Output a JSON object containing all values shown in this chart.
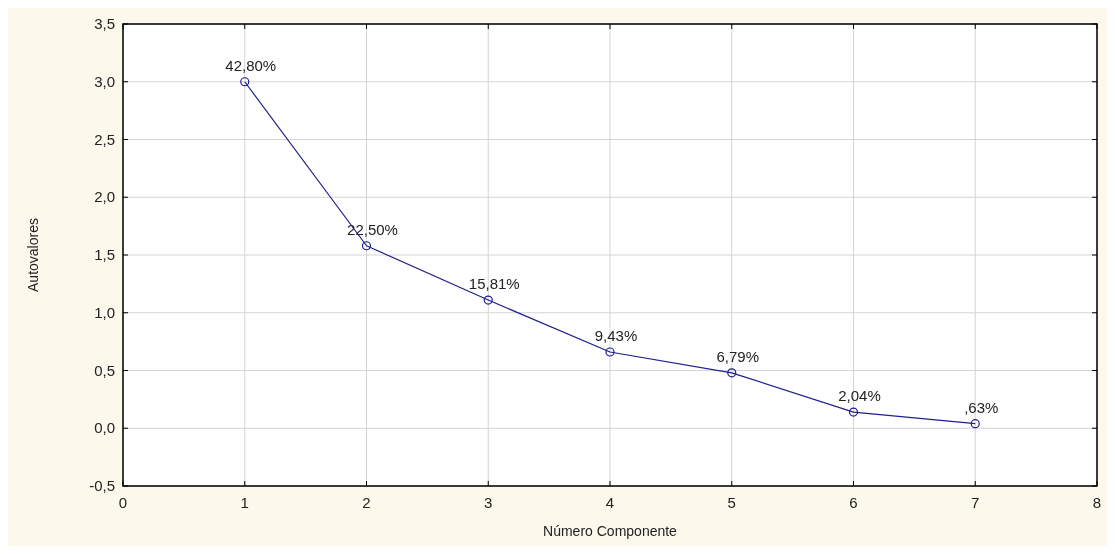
{
  "chart_data": {
    "type": "line",
    "xlabel": "Número Componente",
    "ylabel": "Autovalores",
    "x": [
      1,
      2,
      3,
      4,
      5,
      6,
      7
    ],
    "series": [
      {
        "color": "#1f1f8f",
        "values": [
          3.0,
          1.58,
          1.11,
          0.66,
          0.48,
          0.14,
          0.04
        ]
      }
    ],
    "annotations": [
      {
        "text": "42,80%",
        "x": 1,
        "y": 3.0
      },
      {
        "text": "22,50%",
        "x": 2,
        "y": 1.58
      },
      {
        "text": "15,81%",
        "x": 3,
        "y": 1.11
      },
      {
        "text": "9,43%",
        "x": 4,
        "y": 0.66
      },
      {
        "text": "6,79%",
        "x": 5,
        "y": 0.48
      },
      {
        "text": "2,04%",
        "x": 6,
        "y": 0.14
      },
      {
        "text": ",63%",
        "x": 7,
        "y": 0.04
      }
    ],
    "xlim": [
      0,
      8
    ],
    "xticks": [
      0,
      1,
      2,
      3,
      4,
      5,
      6,
      7,
      8
    ],
    "ylim": [
      -0.5,
      3.5
    ],
    "yticks": [
      {
        "value": -0.5,
        "label": "-0,5"
      },
      {
        "value": 0,
        "label": "0,0"
      },
      {
        "value": 0.5,
        "label": "0,5"
      },
      {
        "value": 1,
        "label": "1,0"
      },
      {
        "value": 1.5,
        "label": "1,5"
      },
      {
        "value": 2,
        "label": "2,0"
      },
      {
        "value": 2.5,
        "label": "2,5"
      },
      {
        "value": 3,
        "label": "3,0"
      },
      {
        "value": 3.5,
        "label": "3,5"
      }
    ],
    "grid": true,
    "marker": "circle",
    "line_style": "solid"
  }
}
